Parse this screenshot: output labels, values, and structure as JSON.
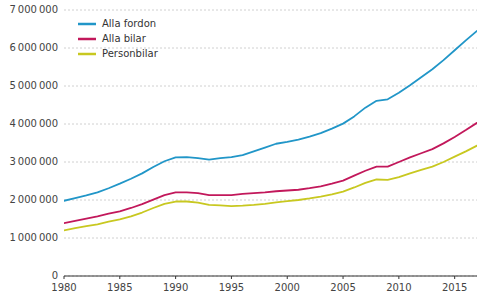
{
  "chart_data": {
    "type": "line",
    "x": [
      1980,
      1981,
      1982,
      1983,
      1984,
      1985,
      1986,
      1987,
      1988,
      1989,
      1990,
      1991,
      1992,
      1993,
      1994,
      1995,
      1996,
      1997,
      1998,
      1999,
      2000,
      2001,
      2002,
      2003,
      2004,
      2005,
      2006,
      2007,
      2008,
      2009,
      2010,
      2011,
      2012,
      2013,
      2014,
      2015,
      2016,
      2017
    ],
    "series": [
      {
        "name": "Alla fordon",
        "color": "#2196C8",
        "values": [
          1980000,
          2050000,
          2120000,
          2200000,
          2310000,
          2430000,
          2560000,
          2700000,
          2870000,
          3020000,
          3120000,
          3130000,
          3100000,
          3060000,
          3100000,
          3130000,
          3180000,
          3280000,
          3380000,
          3480000,
          3530000,
          3590000,
          3670000,
          3760000,
          3880000,
          4010000,
          4200000,
          4430000,
          4610000,
          4650000,
          4820000,
          5020000,
          5230000,
          5440000,
          5680000,
          5940000,
          6200000,
          6450000
        ]
      },
      {
        "name": "Alla bilar",
        "color": "#C2185B",
        "values": [
          1390000,
          1450000,
          1510000,
          1570000,
          1640000,
          1700000,
          1790000,
          1890000,
          2010000,
          2130000,
          2200000,
          2200000,
          2180000,
          2130000,
          2130000,
          2130000,
          2160000,
          2180000,
          2200000,
          2230000,
          2250000,
          2270000,
          2310000,
          2360000,
          2430000,
          2510000,
          2640000,
          2770000,
          2880000,
          2880000,
          3000000,
          3120000,
          3230000,
          3340000,
          3490000,
          3660000,
          3840000,
          4030000
        ]
      },
      {
        "name": "Personbilar",
        "color": "#C8C820",
        "values": [
          1200000,
          1260000,
          1310000,
          1360000,
          1430000,
          1490000,
          1570000,
          1670000,
          1790000,
          1900000,
          1960000,
          1960000,
          1930000,
          1870000,
          1860000,
          1840000,
          1850000,
          1870000,
          1900000,
          1940000,
          1970000,
          2000000,
          2040000,
          2090000,
          2150000,
          2220000,
          2330000,
          2450000,
          2540000,
          2530000,
          2600000,
          2700000,
          2790000,
          2880000,
          3000000,
          3140000,
          3280000,
          3430000
        ]
      }
    ],
    "xlim": [
      1980,
      2017
    ],
    "xticks": [
      1980,
      1985,
      1990,
      1995,
      2000,
      2005,
      2010,
      2015
    ],
    "ylim": [
      0,
      7000000
    ],
    "yticks": [
      0,
      {
        "value": 1000000,
        "label": "1 000 000"
      },
      {
        "value": 2000000,
        "label": "2 000 000"
      },
      {
        "value": 3000000,
        "label": "3 000 000"
      },
      {
        "value": 4000000,
        "label": "4 000 000"
      },
      {
        "value": 5000000,
        "label": "5 000 000"
      },
      {
        "value": 6000000,
        "label": "6 000 000"
      },
      {
        "value": 7000000,
        "label": "7 000 000"
      }
    ],
    "grid": true,
    "legend": "upper left"
  }
}
